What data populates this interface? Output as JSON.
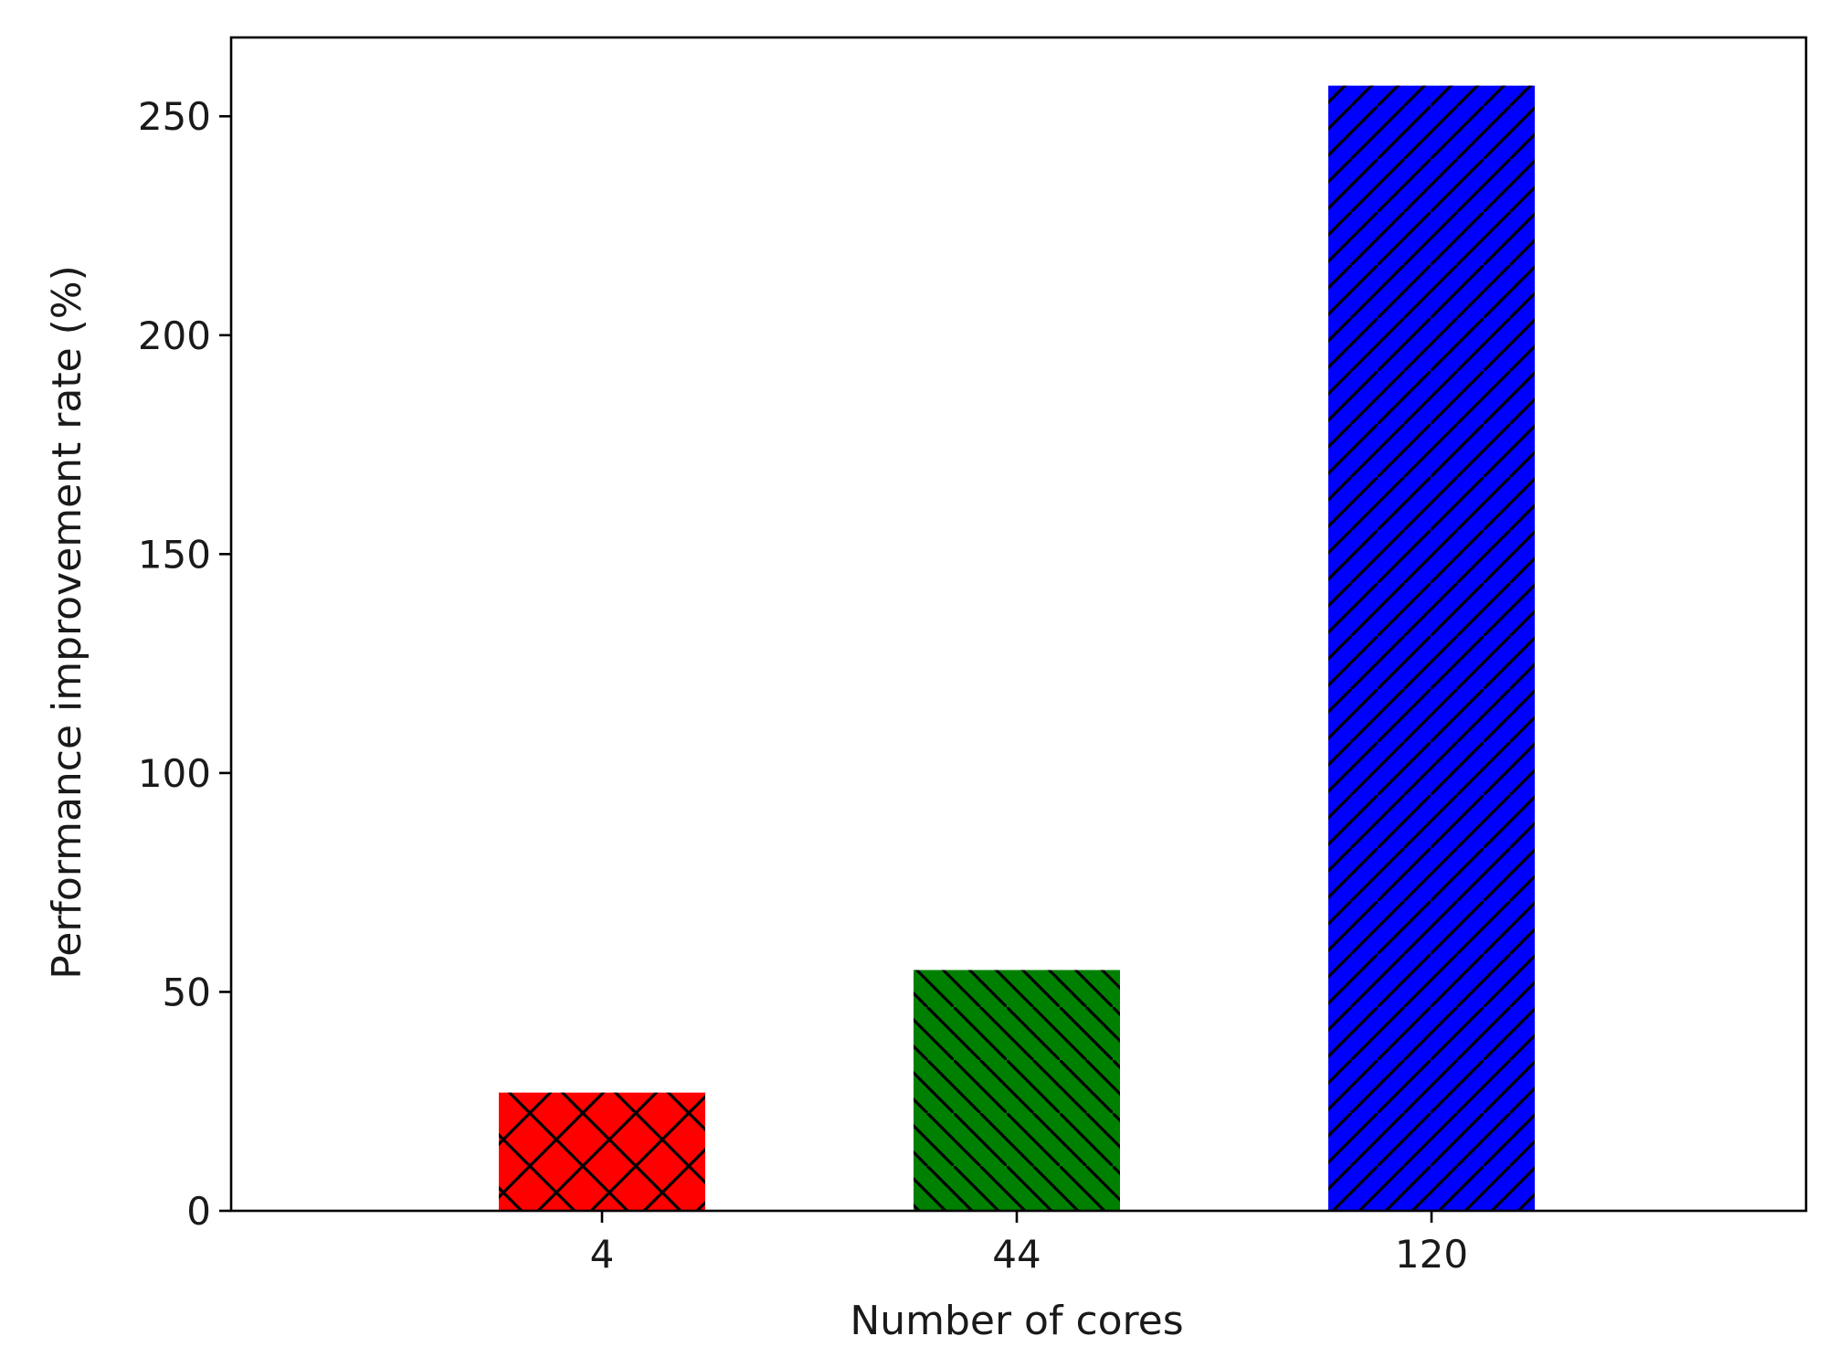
{
  "chart_data": {
    "type": "bar",
    "title": "",
    "xlabel": "Number of cores",
    "ylabel": "Performance improvement rate (%)",
    "categories": [
      "4",
      "44",
      "120"
    ],
    "values": [
      27,
      55,
      257
    ],
    "bar_colors": [
      "#ff0000",
      "#008000",
      "#0000ff"
    ],
    "bar_hatches": [
      "crosshatch",
      "backslash",
      "slash"
    ],
    "hatch_color": "#000000",
    "ylim": [
      0,
      268
    ],
    "yticks": [
      0,
      50,
      100,
      150,
      200,
      250
    ],
    "grid": false,
    "legend": "none"
  }
}
